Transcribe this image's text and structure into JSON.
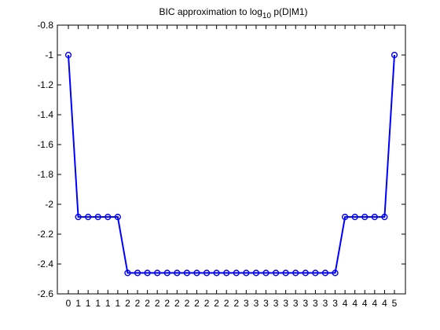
{
  "chart_data": {
    "type": "line",
    "title": {
      "prefix": "BIC approximation to log",
      "subscript": "10",
      "suffix": " p(D|M1)"
    },
    "xlabel": "",
    "ylabel": "",
    "ylim": [
      -2.6,
      -0.8
    ],
    "yticks": [
      -0.8,
      -1,
      -1.2,
      -1.4,
      -1.6,
      -1.8,
      -2,
      -2.2,
      -2.4,
      -2.6
    ],
    "ytick_labels": [
      "-0.8",
      "-1",
      "-1.2",
      "-1.4",
      "-1.6",
      "-1.8",
      "-2",
      "-2.2",
      "-2.4",
      "-2.6"
    ],
    "x_tick_labels": [
      "0",
      "1",
      "1",
      "1",
      "1",
      "1",
      "2",
      "2",
      "2",
      "2",
      "2",
      "2",
      "2",
      "2",
      "2",
      "2",
      "2",
      "2",
      "3",
      "3",
      "3",
      "3",
      "3",
      "3",
      "3",
      "3",
      "3",
      "3",
      "4",
      "4",
      "4",
      "4",
      "4",
      "5"
    ],
    "grid": false,
    "legend": "none",
    "series": [
      {
        "color": "#0000ff",
        "marker": "circle",
        "values": [
          -1,
          -2.085,
          -2.085,
          -2.085,
          -2.085,
          -2.085,
          -2.46,
          -2.46,
          -2.46,
          -2.46,
          -2.46,
          -2.46,
          -2.46,
          -2.46,
          -2.46,
          -2.46,
          -2.46,
          -2.46,
          -2.46,
          -2.46,
          -2.46,
          -2.46,
          -2.46,
          -2.46,
          -2.46,
          -2.46,
          -2.46,
          -2.46,
          -2.085,
          -2.085,
          -2.085,
          -2.085,
          -2.085,
          -1
        ]
      }
    ]
  }
}
